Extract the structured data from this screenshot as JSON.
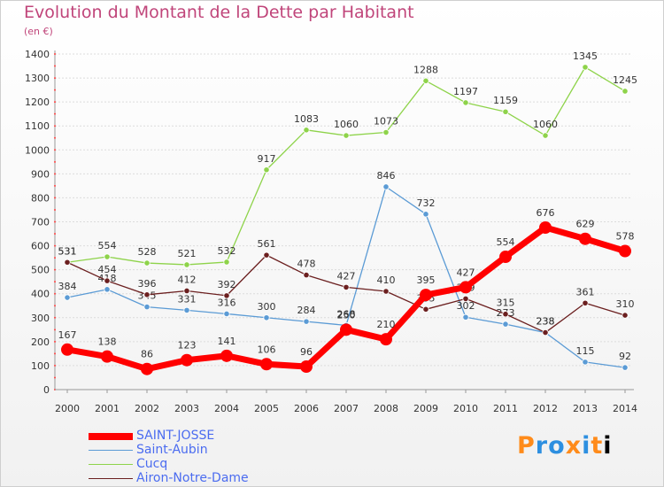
{
  "chart_data": {
    "type": "line",
    "title": "Evolution du Montant de la Dette par Habitant",
    "subtitle": "(en €)",
    "xlabel": "",
    "ylabel": "",
    "categories": [
      "2000",
      "2001",
      "2002",
      "2003",
      "2004",
      "2005",
      "2006",
      "2007",
      "2008",
      "2009",
      "2010",
      "2011",
      "2012",
      "2013",
      "2014"
    ],
    "ylim": [
      0,
      1400
    ],
    "yticks": [
      0,
      100,
      200,
      300,
      400,
      500,
      600,
      700,
      800,
      900,
      1000,
      1100,
      1200,
      1300,
      1400
    ],
    "grid": true,
    "legend_position": "bottom-left",
    "series": [
      {
        "name": "Saint-Aubin",
        "color": "#5b9bd5",
        "values": [
          384,
          418,
          345,
          331,
          316,
          300,
          284,
          268,
          846,
          732,
          302,
          273,
          238,
          115,
          92
        ]
      },
      {
        "name": "Cucq",
        "color": "#8ed34a",
        "values": [
          531,
          554,
          528,
          521,
          532,
          917,
          1083,
          1060,
          1073,
          1288,
          1197,
          1159,
          1060,
          1345,
          1245
        ]
      },
      {
        "name": "Airon-Notre-Dame",
        "color": "#6b1f1f",
        "values": [
          531,
          454,
          396,
          412,
          392,
          561,
          478,
          427,
          410,
          335,
          379,
          315,
          238,
          361,
          310
        ]
      },
      {
        "name": "SAINT-JOSSE",
        "color": "#ff0000",
        "values": [
          167,
          138,
          86,
          123,
          141,
          106,
          96,
          250,
          210,
          395,
          427,
          554,
          676,
          629,
          578
        ]
      }
    ]
  },
  "legend": [
    {
      "label": "SAINT-JOSSE",
      "color": "#ff0000"
    },
    {
      "label": "Saint-Aubin",
      "color": "#5b9bd5"
    },
    {
      "label": "Cucq",
      "color": "#8ed34a"
    },
    {
      "label": "Airon-Notre-Dame",
      "color": "#6b1f1f"
    }
  ],
  "brand": [
    "P",
    "r",
    "o",
    "x",
    "i",
    "t",
    "i"
  ]
}
